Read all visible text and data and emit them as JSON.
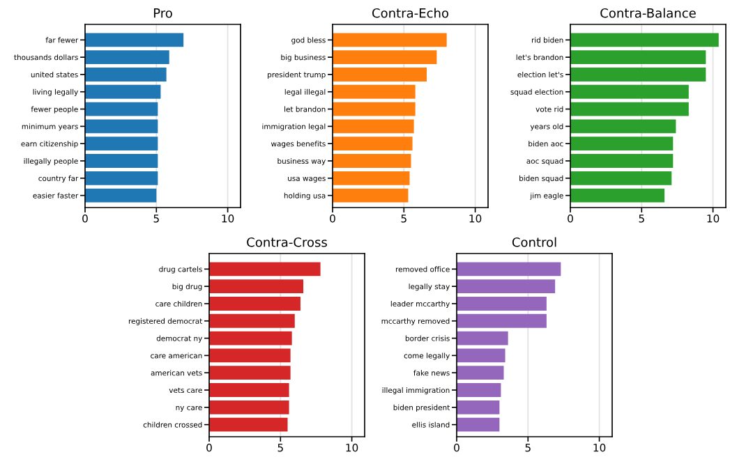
{
  "chart_data": [
    {
      "type": "bar",
      "orientation": "horizontal",
      "title": "Pro",
      "color": "#1f77b4",
      "xlim": [
        0,
        10.9
      ],
      "xticks": [
        0,
        5,
        10
      ],
      "grid": "x",
      "categories": [
        "far fewer",
        "thousands dollars",
        "united states",
        "living legally",
        "fewer people",
        "minimum years",
        "earn citizenship",
        "illegally people",
        "country far",
        "easier faster"
      ],
      "values": [
        6.9,
        5.9,
        5.7,
        5.3,
        5.1,
        5.1,
        5.1,
        5.1,
        5.1,
        5.0
      ]
    },
    {
      "type": "bar",
      "orientation": "horizontal",
      "title": "Contra-Echo",
      "color": "#ff7f0e",
      "xlim": [
        0,
        10.9
      ],
      "xticks": [
        0,
        5,
        10
      ],
      "grid": "x",
      "categories": [
        "god bless",
        "big business",
        "president trump",
        "legal illegal",
        "let brandon",
        "immigration legal",
        "wages benefits",
        "business way",
        "usa wages",
        "holding usa"
      ],
      "values": [
        8.0,
        7.3,
        6.6,
        5.8,
        5.8,
        5.7,
        5.6,
        5.5,
        5.4,
        5.3
      ]
    },
    {
      "type": "bar",
      "orientation": "horizontal",
      "title": "Contra-Balance",
      "color": "#2ca02c",
      "xlim": [
        0,
        10.9
      ],
      "xticks": [
        0,
        5,
        10
      ],
      "grid": "x",
      "categories": [
        "rid biden",
        "let's brandon",
        "election let's",
        "squad election",
        "vote rid",
        "years old",
        "biden aoc",
        "aoc squad",
        "biden squad",
        "jim eagle"
      ],
      "values": [
        10.4,
        9.5,
        9.5,
        8.3,
        8.3,
        7.4,
        7.2,
        7.2,
        7.1,
        6.6
      ]
    },
    {
      "type": "bar",
      "orientation": "horizontal",
      "title": "Contra-Cross",
      "color": "#d62728",
      "xlim": [
        0,
        10.9
      ],
      "xticks": [
        0,
        5,
        10
      ],
      "grid": "x",
      "categories": [
        "drug cartels",
        "big drug",
        "care children",
        "registered democrat",
        "democrat ny",
        "care american",
        "american vets",
        "vets care",
        "ny care",
        "children crossed"
      ],
      "values": [
        7.8,
        6.6,
        6.4,
        6.0,
        5.8,
        5.7,
        5.7,
        5.6,
        5.6,
        5.5
      ]
    },
    {
      "type": "bar",
      "orientation": "horizontal",
      "title": "Control",
      "color": "#9467bd",
      "xlim": [
        0,
        10.9
      ],
      "xticks": [
        0,
        5,
        10
      ],
      "grid": "x",
      "categories": [
        "removed office",
        "legally stay",
        "leader mccarthy",
        "mccarthy removed",
        "border crisis",
        "come legally",
        "fake news",
        "illegal immigration",
        "biden president",
        "ellis island"
      ],
      "values": [
        7.3,
        6.9,
        6.3,
        6.3,
        3.6,
        3.4,
        3.3,
        3.1,
        3.0,
        3.0
      ]
    }
  ]
}
